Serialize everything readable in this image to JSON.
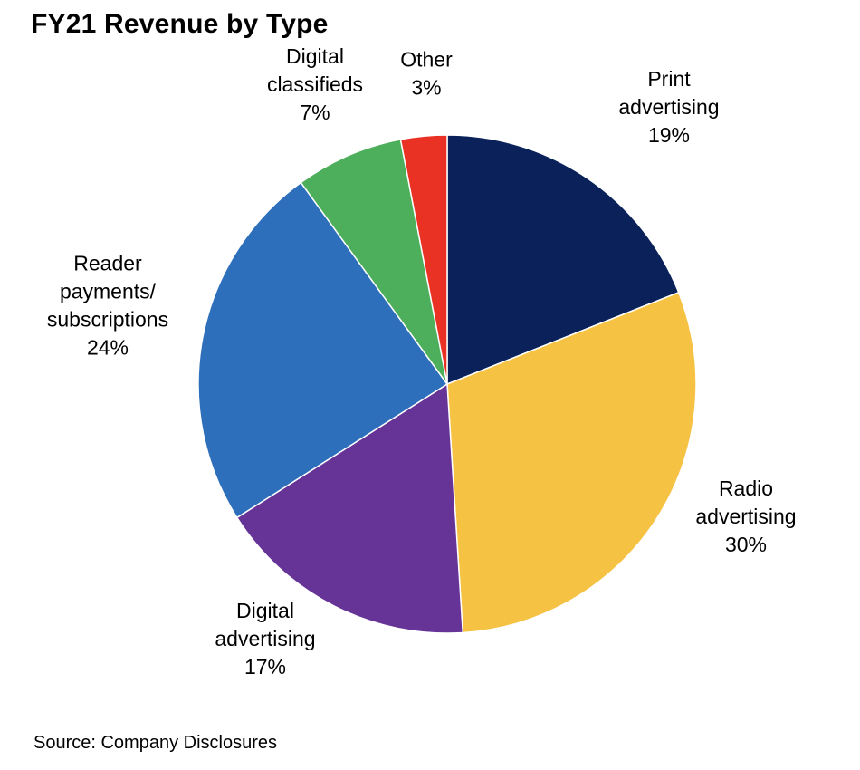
{
  "title": "FY21 Revenue by Type",
  "source": "Source: Company Disclosures",
  "chart_data": {
    "type": "pie",
    "title": "FY21 Revenue by Type",
    "start_angle_deg": 0,
    "direction": "clockwise",
    "slices": [
      {
        "id": "print-advertising",
        "label_lines": [
          "Print",
          "advertising",
          "19%"
        ],
        "label": "Print advertising",
        "value": 19,
        "value_label": "19%",
        "color": "#0a2259"
      },
      {
        "id": "radio-advertising",
        "label_lines": [
          "Radio",
          "advertising",
          "30%"
        ],
        "label": "Radio advertising",
        "value": 30,
        "value_label": "30%",
        "color": "#f6c244"
      },
      {
        "id": "digital-advertising",
        "label_lines": [
          "Digital",
          "advertising",
          "17%"
        ],
        "label": "Digital advertising",
        "value": 17,
        "value_label": "17%",
        "color": "#663497"
      },
      {
        "id": "reader-payments-subscriptions",
        "label_lines": [
          "Reader",
          "payments/",
          "subscriptions",
          "24%"
        ],
        "label": "Reader payments/ subscriptions",
        "value": 24,
        "value_label": "24%",
        "color": "#2d6fbb"
      },
      {
        "id": "digital-classifieds",
        "label_lines": [
          "Digital",
          "classifieds",
          "7%"
        ],
        "label": "Digital classifieds",
        "value": 7,
        "value_label": "7%",
        "color": "#4daf5c"
      },
      {
        "id": "other",
        "label_lines": [
          "Other",
          "3%"
        ],
        "label": "Other",
        "value": 3,
        "value_label": "3%",
        "color": "#e93224"
      }
    ]
  }
}
